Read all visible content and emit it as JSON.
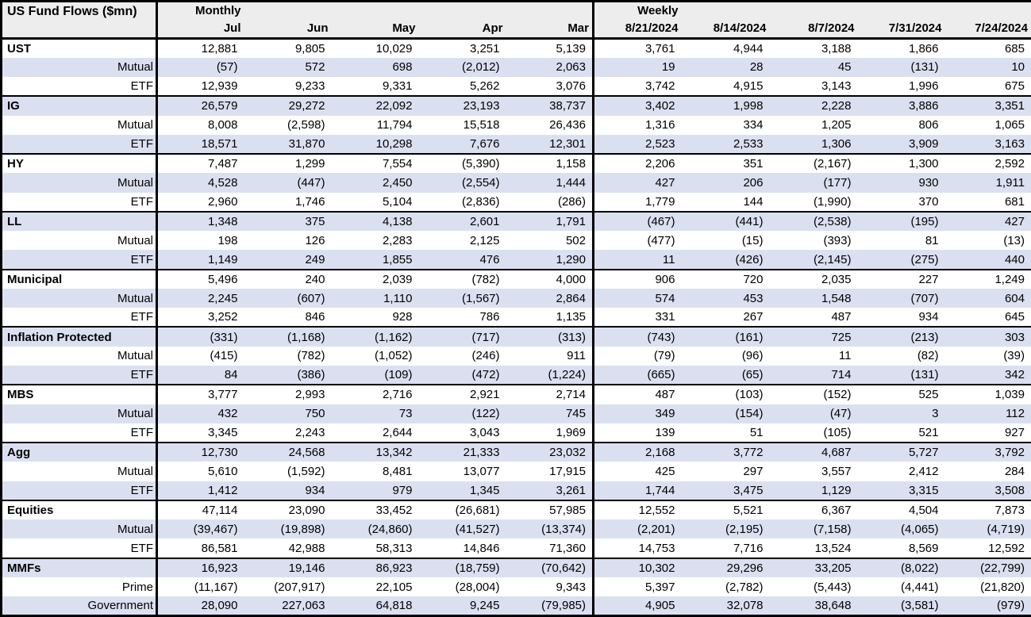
{
  "colors": {
    "band_row": "#dbe0f1",
    "header_bg": "#ededed",
    "border": "#000000",
    "text": "#000000"
  },
  "chart_data": {
    "type": "table",
    "title": "US Fund Flows ($mn)",
    "units": "$mn",
    "column_groups": [
      {
        "label": "Monthly",
        "columns": [
          "Jul",
          "Jun",
          "May",
          "Apr",
          "Mar"
        ]
      },
      {
        "label": "Weekly",
        "columns": [
          "8/21/2024",
          "8/14/2024",
          "8/7/2024",
          "7/31/2024",
          "7/24/2024"
        ]
      }
    ],
    "rows": [
      {
        "label": "UST",
        "group": true,
        "values": [
          "12,881",
          "9,805",
          "10,029",
          "3,251",
          "5,139",
          "3,761",
          "4,944",
          "3,188",
          "1,866",
          "685"
        ]
      },
      {
        "label": "Mutual",
        "group": false,
        "values": [
          "(57)",
          "572",
          "698",
          "(2,012)",
          "2,063",
          "19",
          "28",
          "45",
          "(131)",
          "10"
        ]
      },
      {
        "label": "ETF",
        "group": false,
        "values": [
          "12,939",
          "9,233",
          "9,331",
          "5,262",
          "3,076",
          "3,742",
          "4,915",
          "3,143",
          "1,996",
          "675"
        ]
      },
      {
        "label": "IG",
        "group": true,
        "values": [
          "26,579",
          "29,272",
          "22,092",
          "23,193",
          "38,737",
          "3,402",
          "1,998",
          "2,228",
          "3,886",
          "3,351"
        ]
      },
      {
        "label": "Mutual",
        "group": false,
        "values": [
          "8,008",
          "(2,598)",
          "11,794",
          "15,518",
          "26,436",
          "1,316",
          "334",
          "1,205",
          "806",
          "1,065"
        ]
      },
      {
        "label": "ETF",
        "group": false,
        "values": [
          "18,571",
          "31,870",
          "10,298",
          "7,676",
          "12,301",
          "2,523",
          "2,533",
          "1,306",
          "3,909",
          "3,163"
        ]
      },
      {
        "label": "HY",
        "group": true,
        "values": [
          "7,487",
          "1,299",
          "7,554",
          "(5,390)",
          "1,158",
          "2,206",
          "351",
          "(2,167)",
          "1,300",
          "2,592"
        ]
      },
      {
        "label": "Mutual",
        "group": false,
        "values": [
          "4,528",
          "(447)",
          "2,450",
          "(2,554)",
          "1,444",
          "427",
          "206",
          "(177)",
          "930",
          "1,911"
        ]
      },
      {
        "label": "ETF",
        "group": false,
        "values": [
          "2,960",
          "1,746",
          "5,104",
          "(2,836)",
          "(286)",
          "1,779",
          "144",
          "(1,990)",
          "370",
          "681"
        ]
      },
      {
        "label": "LL",
        "group": true,
        "values": [
          "1,348",
          "375",
          "4,138",
          "2,601",
          "1,791",
          "(467)",
          "(441)",
          "(2,538)",
          "(195)",
          "427"
        ]
      },
      {
        "label": "Mutual",
        "group": false,
        "values": [
          "198",
          "126",
          "2,283",
          "2,125",
          "502",
          "(477)",
          "(15)",
          "(393)",
          "81",
          "(13)"
        ]
      },
      {
        "label": "ETF",
        "group": false,
        "values": [
          "1,149",
          "249",
          "1,855",
          "476",
          "1,290",
          "11",
          "(426)",
          "(2,145)",
          "(275)",
          "440"
        ]
      },
      {
        "label": "Municipal",
        "group": true,
        "values": [
          "5,496",
          "240",
          "2,039",
          "(782)",
          "4,000",
          "906",
          "720",
          "2,035",
          "227",
          "1,249"
        ]
      },
      {
        "label": "Mutual",
        "group": false,
        "values": [
          "2,245",
          "(607)",
          "1,110",
          "(1,567)",
          "2,864",
          "574",
          "453",
          "1,548",
          "(707)",
          "604"
        ]
      },
      {
        "label": "ETF",
        "group": false,
        "values": [
          "3,252",
          "846",
          "928",
          "786",
          "1,135",
          "331",
          "267",
          "487",
          "934",
          "645"
        ]
      },
      {
        "label": "Inflation Protected",
        "group": true,
        "values": [
          "(331)",
          "(1,168)",
          "(1,162)",
          "(717)",
          "(313)",
          "(743)",
          "(161)",
          "725",
          "(213)",
          "303"
        ]
      },
      {
        "label": "Mutual",
        "group": false,
        "values": [
          "(415)",
          "(782)",
          "(1,052)",
          "(246)",
          "911",
          "(79)",
          "(96)",
          "11",
          "(82)",
          "(39)"
        ]
      },
      {
        "label": "ETF",
        "group": false,
        "values": [
          "84",
          "(386)",
          "(109)",
          "(472)",
          "(1,224)",
          "(665)",
          "(65)",
          "714",
          "(131)",
          "342"
        ]
      },
      {
        "label": "MBS",
        "group": true,
        "values": [
          "3,777",
          "2,993",
          "2,716",
          "2,921",
          "2,714",
          "487",
          "(103)",
          "(152)",
          "525",
          "1,039"
        ]
      },
      {
        "label": "Mutual",
        "group": false,
        "values": [
          "432",
          "750",
          "73",
          "(122)",
          "745",
          "349",
          "(154)",
          "(47)",
          "3",
          "112"
        ]
      },
      {
        "label": "ETF",
        "group": false,
        "values": [
          "3,345",
          "2,243",
          "2,644",
          "3,043",
          "1,969",
          "139",
          "51",
          "(105)",
          "521",
          "927"
        ]
      },
      {
        "label": "Agg",
        "group": true,
        "values": [
          "12,730",
          "24,568",
          "13,342",
          "21,333",
          "23,032",
          "2,168",
          "3,772",
          "4,687",
          "5,727",
          "3,792"
        ]
      },
      {
        "label": "Mutual",
        "group": false,
        "values": [
          "5,610",
          "(1,592)",
          "8,481",
          "13,077",
          "17,915",
          "425",
          "297",
          "3,557",
          "2,412",
          "284"
        ]
      },
      {
        "label": "ETF",
        "group": false,
        "values": [
          "1,412",
          "934",
          "979",
          "1,345",
          "3,261",
          "1,744",
          "3,475",
          "1,129",
          "3,315",
          "3,508"
        ]
      },
      {
        "label": "Equities",
        "group": true,
        "values": [
          "47,114",
          "23,090",
          "33,452",
          "(26,681)",
          "57,985",
          "12,552",
          "5,521",
          "6,367",
          "4,504",
          "7,873"
        ]
      },
      {
        "label": "Mutual",
        "group": false,
        "values": [
          "(39,467)",
          "(19,898)",
          "(24,860)",
          "(41,527)",
          "(13,374)",
          "(2,201)",
          "(2,195)",
          "(7,158)",
          "(4,065)",
          "(4,719)"
        ]
      },
      {
        "label": "ETF",
        "group": false,
        "values": [
          "86,581",
          "42,988",
          "58,313",
          "14,846",
          "71,360",
          "14,753",
          "7,716",
          "13,524",
          "8,569",
          "12,592"
        ]
      },
      {
        "label": "MMFs",
        "group": true,
        "values": [
          "16,923",
          "19,146",
          "86,923",
          "(18,759)",
          "(70,642)",
          "10,302",
          "29,296",
          "33,205",
          "(8,022)",
          "(22,799)"
        ]
      },
      {
        "label": "Prime",
        "group": false,
        "values": [
          "(11,167)",
          "(207,917)",
          "22,105",
          "(28,004)",
          "9,343",
          "5,397",
          "(2,782)",
          "(5,443)",
          "(4,441)",
          "(21,820)"
        ]
      },
      {
        "label": "Government",
        "group": false,
        "values": [
          "28,090",
          "227,063",
          "64,818",
          "9,245",
          "(79,985)",
          "4,905",
          "32,078",
          "38,648",
          "(3,581)",
          "(979)"
        ]
      }
    ]
  }
}
